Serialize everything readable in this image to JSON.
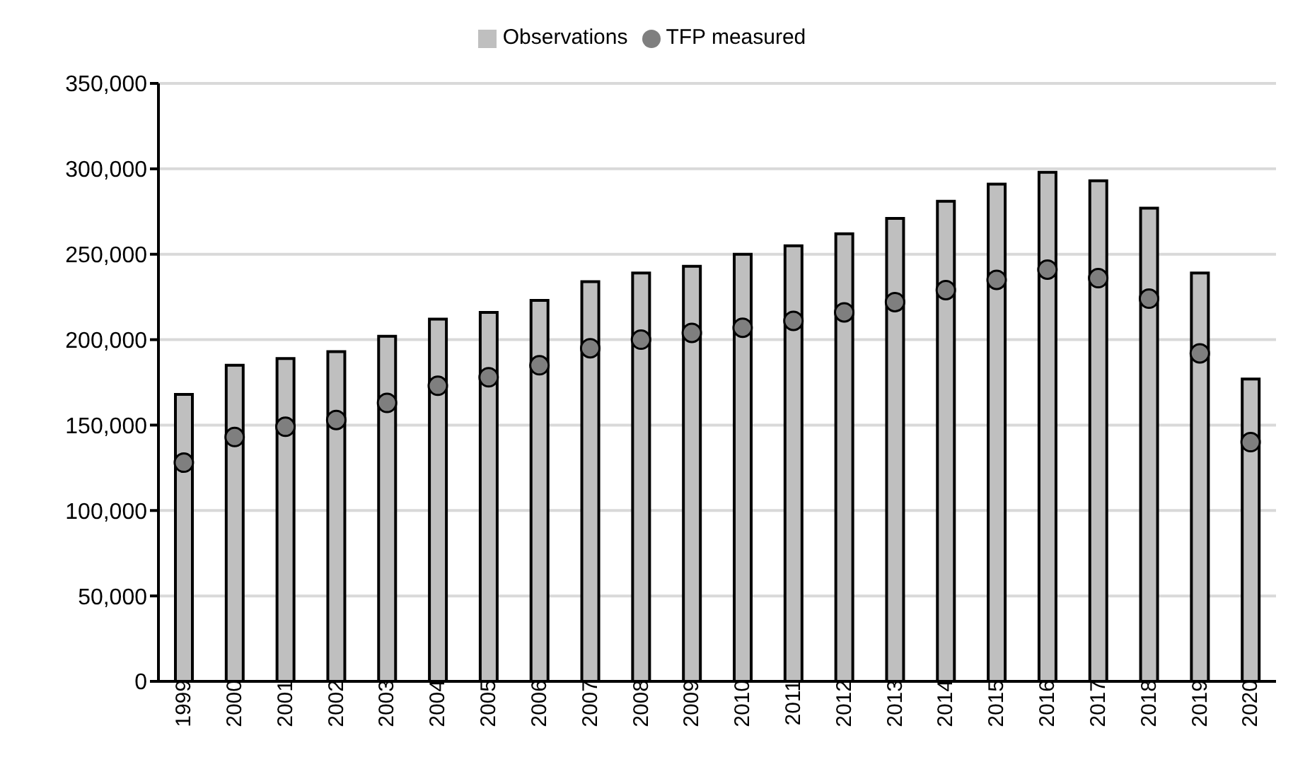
{
  "chart_data": {
    "type": "bar",
    "categories": [
      "1999",
      "2000",
      "2001",
      "2002",
      "2003",
      "2004",
      "2005",
      "2006",
      "2007",
      "2008",
      "2009",
      "2010",
      "2011",
      "2012",
      "2013",
      "2014",
      "2015",
      "2016",
      "2017",
      "2018",
      "2019",
      "2020"
    ],
    "series": [
      {
        "name": "Observations",
        "color": "#bfbfbf",
        "values": [
          168000,
          185000,
          189000,
          193000,
          202000,
          212000,
          216000,
          223000,
          234000,
          239000,
          243000,
          250000,
          255000,
          262000,
          271000,
          281000,
          291000,
          298000,
          293000,
          277000,
          239000,
          177000
        ]
      },
      {
        "name": "TFP measured",
        "type": "scatter",
        "color": "#7f7f7f",
        "marker": "circle",
        "values": [
          128000,
          143000,
          149000,
          153000,
          163000,
          173000,
          178000,
          185000,
          195000,
          200000,
          204000,
          207000,
          211000,
          216000,
          222000,
          229000,
          235000,
          241000,
          236000,
          224000,
          192000,
          140000
        ]
      }
    ],
    "ylim": [
      0,
      350000
    ],
    "yticks": [
      0,
      {
        "value": 50000,
        "label": "50,000"
      },
      {
        "value": 100000,
        "label": "100,000"
      },
      {
        "value": 150000,
        "label": "150,000"
      },
      {
        "value": 200000,
        "label": "200,000"
      },
      {
        "value": 250000,
        "label": "250,000"
      },
      {
        "value": 300000,
        "label": "300,000"
      },
      {
        "value": 350000,
        "label": "350,000"
      }
    ],
    "grid": "y",
    "legend": "top"
  }
}
